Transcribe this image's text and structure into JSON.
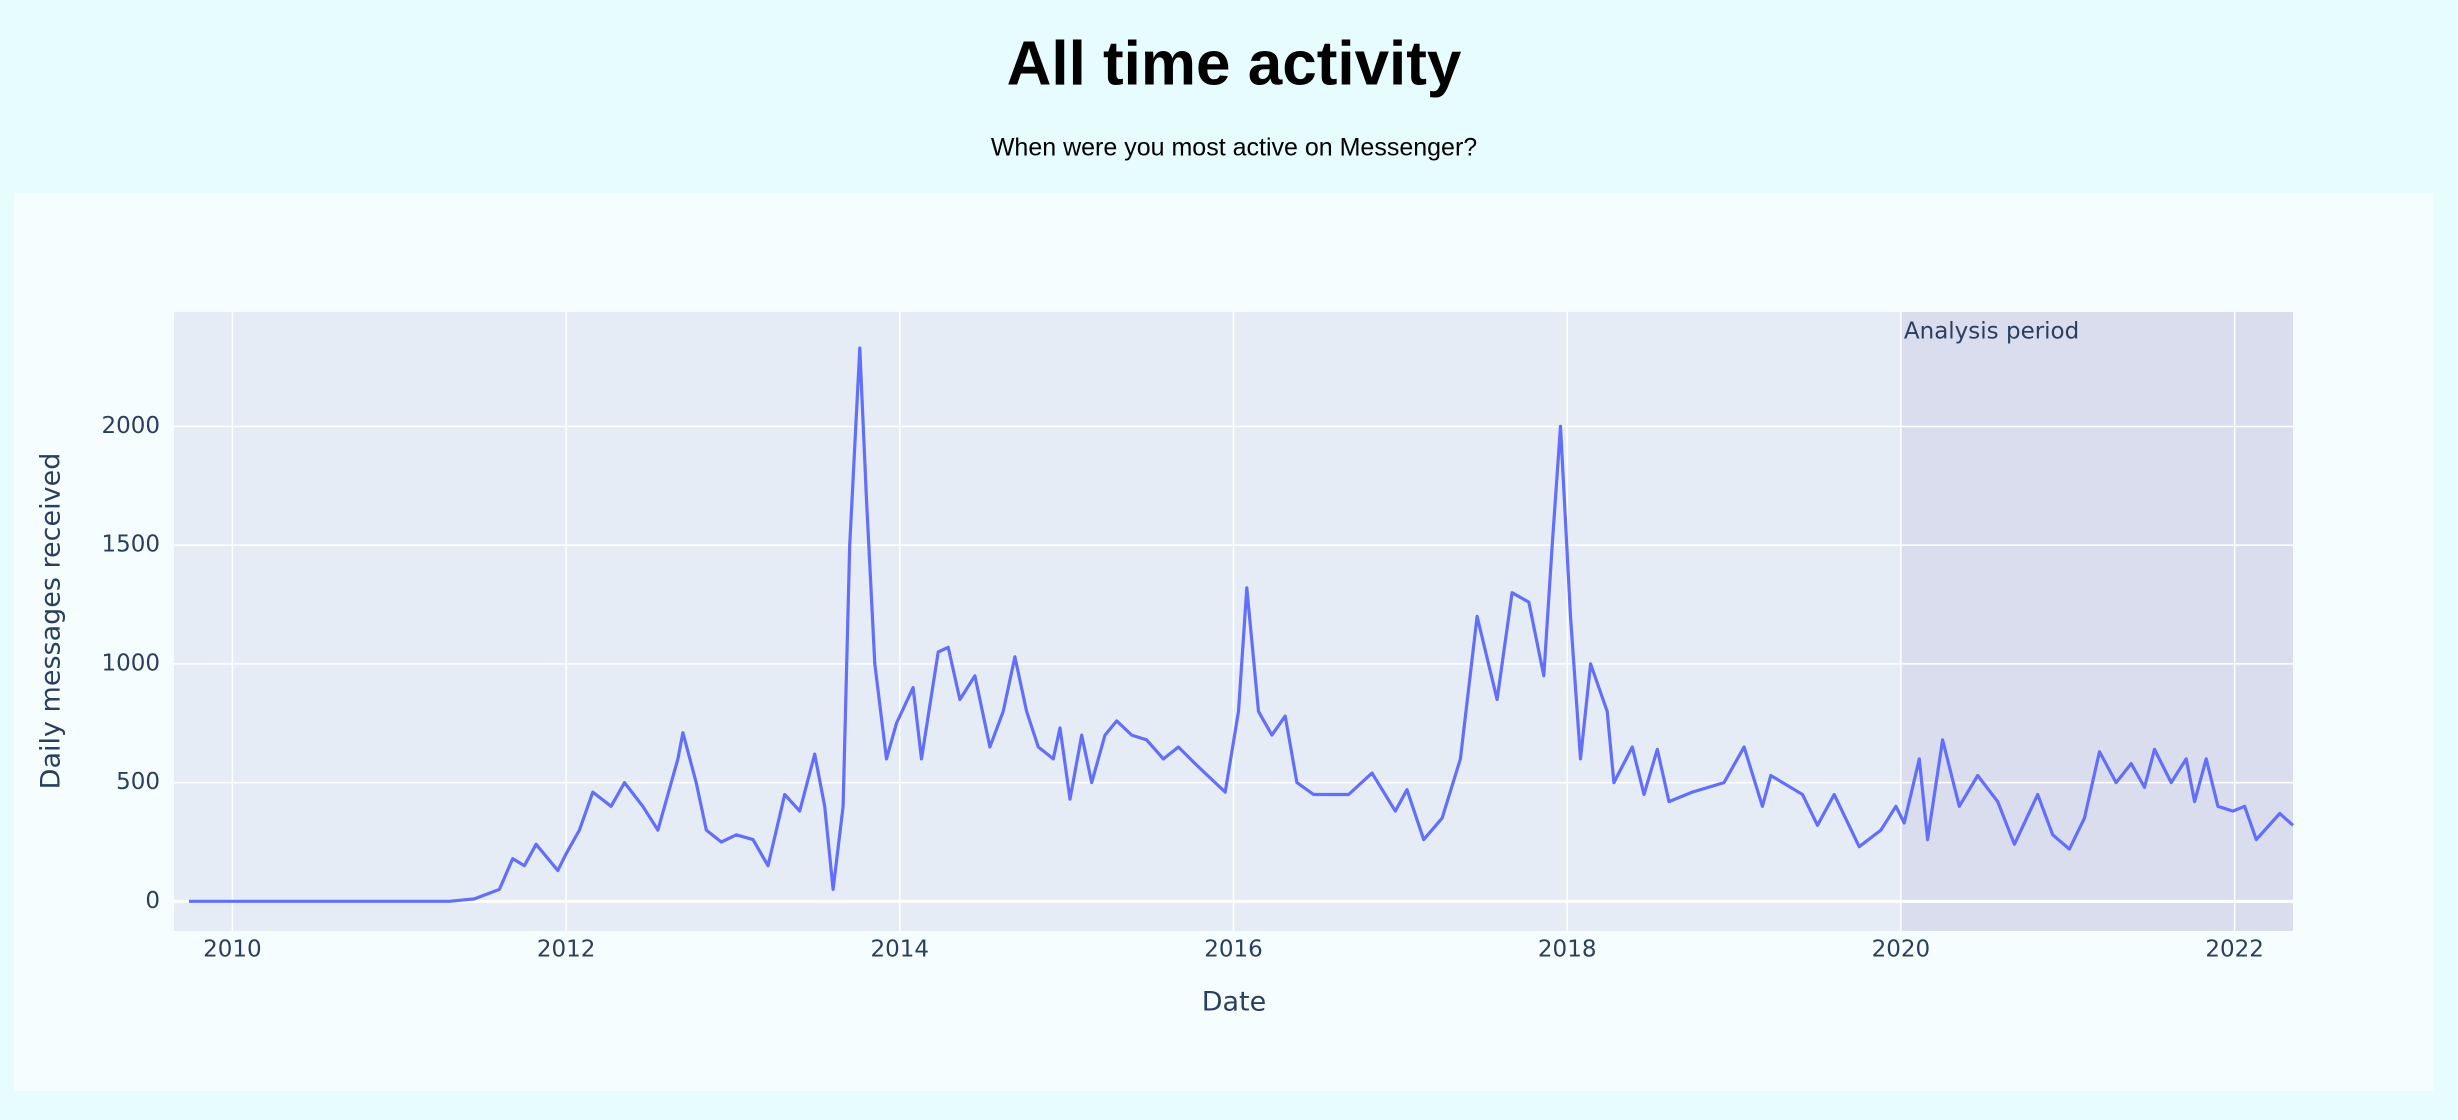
{
  "chart_data": {
    "type": "line",
    "title": "All time activity",
    "subtitle": "When were you most active on Messenger?",
    "xlabel": "Date",
    "ylabel": "Daily messages received",
    "x": [
      2009.74,
      2010.5,
      2011.3,
      2011.45,
      2011.6,
      2011.68,
      2011.75,
      2011.82,
      2011.95,
      2012.0,
      2012.08,
      2012.16,
      2012.27,
      2012.35,
      2012.46,
      2012.55,
      2012.67,
      2012.7,
      2012.78,
      2012.84,
      2012.93,
      2013.02,
      2013.12,
      2013.21,
      2013.31,
      2013.4,
      2013.49,
      2013.55,
      2013.6,
      2013.66,
      2013.7,
      2013.76,
      2013.8,
      2013.85,
      2013.92,
      2013.98,
      2014.08,
      2014.13,
      2014.23,
      2014.29,
      2014.36,
      2014.45,
      2014.54,
      2014.62,
      2014.69,
      2014.76,
      2014.83,
      2014.92,
      2014.96,
      2015.02,
      2015.09,
      2015.15,
      2015.23,
      2015.3,
      2015.39,
      2015.48,
      2015.58,
      2015.67,
      2015.77,
      2015.89,
      2015.95,
      2016.03,
      2016.08,
      2016.15,
      2016.23,
      2016.31,
      2016.38,
      2016.48,
      2016.59,
      2016.69,
      2016.83,
      2016.97,
      2017.04,
      2017.14,
      2017.25,
      2017.36,
      2017.46,
      2017.58,
      2017.67,
      2017.77,
      2017.86,
      2017.91,
      2017.96,
      2018.02,
      2018.08,
      2018.14,
      2018.24,
      2018.28,
      2018.39,
      2018.46,
      2018.54,
      2018.61,
      2018.75,
      2018.94,
      2019.06,
      2019.17,
      2019.22,
      2019.41,
      2019.5,
      2019.6,
      2019.75,
      2019.88,
      2019.97,
      2020.02,
      2020.11,
      2020.16,
      2020.25,
      2020.35,
      2020.46,
      2020.58,
      2020.68,
      2020.82,
      2020.91,
      2021.01,
      2021.1,
      2021.19,
      2021.29,
      2021.38,
      2021.46,
      2021.52,
      2021.62,
      2021.71,
      2021.76,
      2021.83,
      2021.9,
      2021.99,
      2022.06,
      2022.13,
      2022.27,
      2022.35
    ],
    "values": [
      0,
      0,
      0,
      10,
      50,
      180,
      150,
      240,
      130,
      200,
      300,
      460,
      400,
      500,
      400,
      300,
      600,
      710,
      500,
      300,
      250,
      280,
      260,
      150,
      450,
      380,
      620,
      400,
      50,
      400,
      1500,
      2330,
      1700,
      1000,
      600,
      750,
      900,
      600,
      1050,
      1070,
      850,
      950,
      650,
      800,
      1030,
      800,
      650,
      600,
      730,
      430,
      700,
      500,
      700,
      760,
      700,
      680,
      600,
      650,
      580,
      500,
      460,
      800,
      1320,
      800,
      700,
      780,
      500,
      450,
      450,
      450,
      540,
      380,
      470,
      260,
      350,
      600,
      1200,
      850,
      1300,
      1260,
      950,
      1500,
      2000,
      1200,
      600,
      1000,
      800,
      500,
      650,
      450,
      640,
      420,
      460,
      500,
      650,
      400,
      530,
      450,
      320,
      450,
      230,
      300,
      400,
      330,
      600,
      260,
      680,
      400,
      530,
      420,
      240,
      450,
      280,
      220,
      350,
      630,
      500,
      580,
      480,
      640,
      500,
      600,
      420,
      600,
      400,
      380,
      400,
      260,
      370,
      320
    ],
    "color": "#636efa",
    "xlim": [
      2009.65,
      2022.35
    ],
    "xticks": [
      2010,
      2012,
      2014,
      2016,
      2018,
      2020,
      2022
    ],
    "ylim": [
      -125,
      2482
    ],
    "yticks": [
      0,
      500,
      1000,
      1500,
      2000
    ],
    "grid": true,
    "highlight": {
      "x0": 2020,
      "x1": 2022.35,
      "label": "Analysis period"
    }
  }
}
